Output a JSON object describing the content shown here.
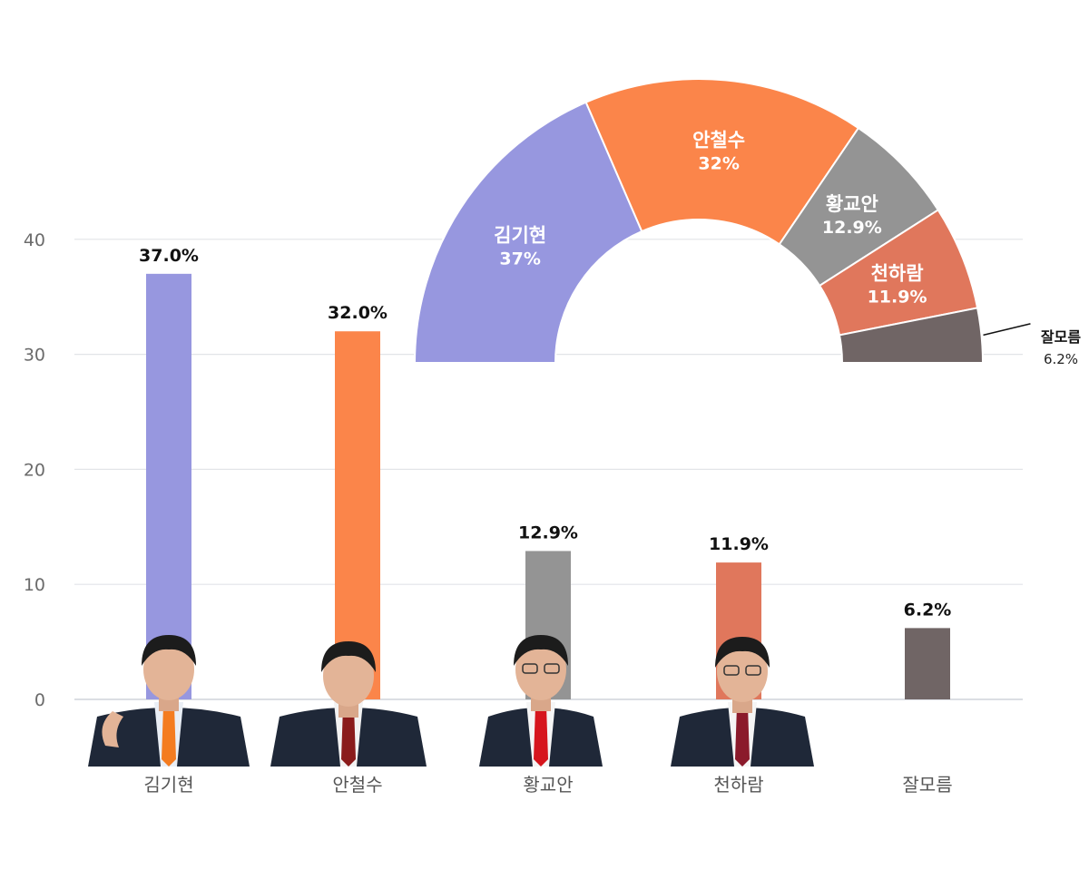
{
  "chart_data": [
    {
      "type": "bar",
      "categories": [
        "김기현",
        "안철수",
        "황교안",
        "천하람",
        "잘모름"
      ],
      "values": [
        37.0,
        32.0,
        12.9,
        11.9,
        6.2
      ],
      "value_labels": [
        "37.0%",
        "32.0%",
        "12.9%",
        "11.9%",
        "6.2%"
      ],
      "colors": [
        "#9797df",
        "#fb854a",
        "#949494",
        "#e0775c",
        "#706565"
      ],
      "yticks": [
        0,
        10,
        20,
        30,
        40
      ],
      "ylim": [
        0,
        40
      ],
      "grid": true,
      "portrait_icons": [
        "person-photo-icon",
        "person-photo-icon",
        "person-photo-icon",
        "person-photo-icon"
      ]
    },
    {
      "type": "pie",
      "style": "half-donut",
      "labels": [
        "김기현",
        "안철수",
        "황교안",
        "천하람",
        "잘모름"
      ],
      "values": [
        37,
        32,
        12.9,
        11.9,
        6.2
      ],
      "value_labels": [
        "37%",
        "32%",
        "12.9%",
        "11.9%",
        "6.2%"
      ],
      "colors": [
        "#9797df",
        "#fb854a",
        "#949494",
        "#e0775c",
        "#706565"
      ]
    }
  ]
}
